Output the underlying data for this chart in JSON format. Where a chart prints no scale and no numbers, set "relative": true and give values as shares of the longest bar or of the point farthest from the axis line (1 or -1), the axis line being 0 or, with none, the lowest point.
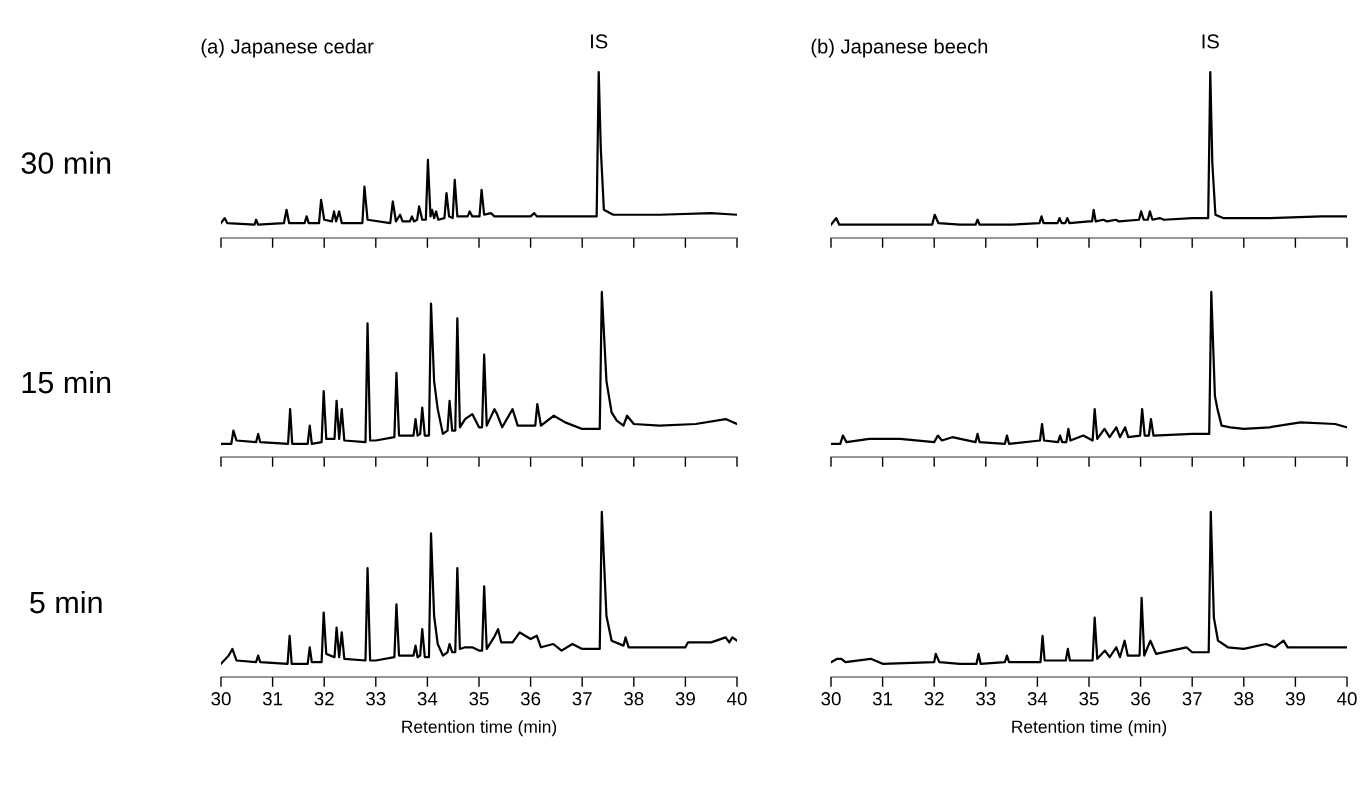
{
  "chart_data": [
    {
      "type": "line",
      "title": "(a) Japanese cedar",
      "relative": true,
      "xlim": [
        30,
        40
      ],
      "xticks": [
        30,
        31,
        32,
        33,
        34,
        35,
        36,
        37,
        38,
        39,
        40
      ],
      "tick_labels": false,
      "annotations": [
        "30 min",
        {
          "text": "IS",
          "x": 37.32,
          "y": 1.0
        }
      ],
      "series": [
        {
          "color": "#000000",
          "x": [
            30.0,
            30.07,
            30.12,
            30.65,
            30.68,
            30.72,
            31.22,
            31.27,
            31.32,
            31.62,
            31.66,
            31.7,
            31.9,
            31.94,
            32.0,
            32.15,
            32.19,
            32.23,
            32.29,
            32.34,
            32.74,
            32.78,
            32.84,
            33.28,
            33.33,
            33.39,
            33.47,
            33.52,
            33.66,
            33.7,
            33.74,
            33.8,
            33.84,
            33.9,
            33.97,
            34.01,
            34.06,
            34.09,
            34.13,
            34.17,
            34.21,
            34.33,
            34.37,
            34.42,
            34.49,
            34.53,
            34.58,
            34.78,
            34.82,
            34.87,
            35.01,
            35.05,
            35.1,
            35.23,
            35.3,
            36.0,
            36.07,
            36.12,
            37.28,
            37.32,
            37.36,
            37.42,
            37.6,
            38.5,
            39.5,
            40.0
          ],
          "values": [
            0.09,
            0.12,
            0.09,
            0.08,
            0.11,
            0.08,
            0.09,
            0.17,
            0.09,
            0.09,
            0.13,
            0.09,
            0.09,
            0.23,
            0.11,
            0.1,
            0.16,
            0.1,
            0.16,
            0.09,
            0.09,
            0.31,
            0.11,
            0.09,
            0.22,
            0.1,
            0.14,
            0.1,
            0.1,
            0.13,
            0.1,
            0.11,
            0.19,
            0.11,
            0.11,
            0.47,
            0.13,
            0.17,
            0.12,
            0.16,
            0.11,
            0.12,
            0.27,
            0.13,
            0.12,
            0.35,
            0.13,
            0.13,
            0.16,
            0.13,
            0.13,
            0.29,
            0.14,
            0.15,
            0.13,
            0.13,
            0.15,
            0.13,
            0.13,
            1.0,
            0.54,
            0.17,
            0.14,
            0.14,
            0.15,
            0.14
          ]
        }
      ]
    },
    {
      "type": "line",
      "title": "(b) Japanese beech",
      "relative": true,
      "xlim": [
        30,
        40
      ],
      "xticks": [
        30,
        31,
        32,
        33,
        34,
        35,
        36,
        37,
        38,
        39,
        40
      ],
      "tick_labels": false,
      "annotations": [
        {
          "text": "IS",
          "x": 37.35,
          "y": 1.0
        }
      ],
      "series": [
        {
          "color": "#000000",
          "x": [
            30.0,
            30.1,
            30.16,
            30.8,
            31.5,
            31.96,
            32.01,
            32.08,
            32.5,
            32.8,
            32.84,
            32.88,
            33.5,
            34.04,
            34.08,
            34.12,
            34.39,
            34.43,
            34.47,
            34.54,
            34.58,
            34.62,
            35.0,
            35.06,
            35.09,
            35.13,
            35.28,
            35.35,
            35.52,
            35.58,
            35.97,
            36.01,
            36.06,
            36.14,
            36.18,
            36.23,
            36.37,
            36.45,
            37.0,
            37.31,
            37.35,
            37.39,
            37.45,
            37.6,
            38.5,
            39.5,
            40.0
          ],
          "values": [
            0.08,
            0.12,
            0.08,
            0.08,
            0.08,
            0.08,
            0.14,
            0.09,
            0.08,
            0.08,
            0.11,
            0.08,
            0.08,
            0.09,
            0.13,
            0.09,
            0.09,
            0.12,
            0.09,
            0.09,
            0.12,
            0.09,
            0.1,
            0.1,
            0.17,
            0.1,
            0.11,
            0.1,
            0.11,
            0.1,
            0.11,
            0.16,
            0.11,
            0.11,
            0.16,
            0.11,
            0.12,
            0.11,
            0.12,
            0.12,
            1.0,
            0.45,
            0.14,
            0.12,
            0.12,
            0.13,
            0.13
          ]
        }
      ]
    },
    {
      "type": "line",
      "relative": true,
      "xlim": [
        30,
        40
      ],
      "xticks": [
        30,
        31,
        32,
        33,
        34,
        35,
        36,
        37,
        38,
        39,
        40
      ],
      "tick_labels": false,
      "annotations": [
        "15 min"
      ],
      "series": [
        {
          "color": "#000000",
          "x": [
            30.0,
            30.2,
            30.24,
            30.3,
            30.68,
            30.72,
            30.76,
            31.3,
            31.34,
            31.38,
            31.68,
            31.72,
            31.76,
            31.95,
            31.99,
            32.04,
            32.2,
            32.24,
            32.29,
            32.34,
            32.39,
            32.8,
            32.84,
            32.89,
            33.0,
            33.36,
            33.4,
            33.45,
            33.5,
            33.73,
            33.77,
            33.81,
            33.86,
            33.9,
            33.95,
            34.03,
            34.07,
            34.13,
            34.2,
            34.3,
            34.39,
            34.43,
            34.48,
            34.54,
            34.58,
            34.63,
            34.73,
            34.87,
            35.0,
            35.06,
            35.1,
            35.15,
            35.3,
            35.35,
            35.45,
            35.65,
            35.75,
            36.09,
            36.13,
            36.2,
            36.45,
            36.67,
            37.0,
            37.34,
            37.38,
            37.47,
            37.57,
            37.67,
            37.8,
            37.87,
            38.0,
            38.5,
            39.2,
            39.78,
            40.0
          ],
          "values": [
            0.08,
            0.08,
            0.16,
            0.1,
            0.09,
            0.14,
            0.09,
            0.08,
            0.29,
            0.08,
            0.08,
            0.19,
            0.08,
            0.09,
            0.4,
            0.11,
            0.11,
            0.34,
            0.11,
            0.29,
            0.1,
            0.09,
            0.81,
            0.1,
            0.1,
            0.12,
            0.51,
            0.13,
            0.13,
            0.13,
            0.23,
            0.13,
            0.14,
            0.3,
            0.13,
            0.13,
            0.93,
            0.46,
            0.29,
            0.14,
            0.16,
            0.34,
            0.16,
            0.16,
            0.84,
            0.18,
            0.23,
            0.26,
            0.18,
            0.18,
            0.62,
            0.19,
            0.29,
            0.26,
            0.18,
            0.29,
            0.19,
            0.19,
            0.32,
            0.19,
            0.25,
            0.21,
            0.17,
            0.17,
            1.0,
            0.46,
            0.27,
            0.22,
            0.19,
            0.25,
            0.2,
            0.19,
            0.2,
            0.23,
            0.2
          ]
        }
      ]
    },
    {
      "type": "line",
      "relative": true,
      "xlim": [
        30,
        40
      ],
      "xticks": [
        30,
        31,
        32,
        33,
        34,
        35,
        36,
        37,
        38,
        39,
        40
      ],
      "tick_labels": false,
      "series": [
        {
          "color": "#000000",
          "x": [
            30.0,
            30.18,
            30.23,
            30.3,
            30.74,
            31.34,
            32.0,
            32.07,
            32.15,
            32.35,
            32.8,
            32.84,
            32.88,
            33.37,
            33.41,
            33.45,
            34.05,
            34.09,
            34.13,
            34.4,
            34.44,
            34.48,
            34.56,
            34.6,
            34.64,
            34.89,
            35.07,
            35.11,
            35.16,
            35.3,
            35.4,
            35.53,
            35.6,
            35.7,
            35.76,
            35.99,
            36.03,
            36.08,
            36.16,
            36.2,
            36.25,
            37.0,
            37.33,
            37.37,
            37.44,
            37.49,
            37.57,
            37.74,
            38.0,
            38.5,
            39.1,
            39.77,
            40.0
          ],
          "values": [
            0.08,
            0.08,
            0.13,
            0.09,
            0.11,
            0.11,
            0.09,
            0.13,
            0.1,
            0.12,
            0.09,
            0.14,
            0.09,
            0.08,
            0.13,
            0.08,
            0.1,
            0.2,
            0.1,
            0.09,
            0.13,
            0.09,
            0.09,
            0.17,
            0.1,
            0.13,
            0.1,
            0.29,
            0.11,
            0.17,
            0.12,
            0.18,
            0.12,
            0.18,
            0.12,
            0.13,
            0.29,
            0.13,
            0.13,
            0.23,
            0.13,
            0.14,
            0.14,
            1.0,
            0.37,
            0.29,
            0.19,
            0.18,
            0.17,
            0.18,
            0.21,
            0.2,
            0.18
          ]
        }
      ]
    },
    {
      "type": "line",
      "relative": true,
      "xlim": [
        30,
        40
      ],
      "xticks": [
        30,
        31,
        32,
        33,
        34,
        35,
        36,
        37,
        38,
        39,
        40
      ],
      "tick_labels": "x",
      "xlabel": "Retention time (min)",
      "annotations": [
        "5 min"
      ],
      "series": [
        {
          "color": "#000000",
          "x": [
            30.0,
            30.15,
            30.22,
            30.3,
            30.68,
            30.72,
            30.76,
            31.29,
            31.33,
            31.37,
            31.68,
            31.72,
            31.76,
            31.95,
            31.99,
            32.04,
            32.2,
            32.24,
            32.29,
            32.34,
            32.39,
            32.8,
            32.84,
            32.89,
            33.0,
            33.36,
            33.4,
            33.45,
            33.5,
            33.73,
            33.77,
            33.81,
            33.86,
            33.9,
            33.95,
            34.03,
            34.07,
            34.13,
            34.2,
            34.3,
            34.39,
            34.43,
            34.48,
            34.54,
            34.58,
            34.63,
            34.73,
            34.87,
            35.0,
            35.06,
            35.1,
            35.15,
            35.29,
            35.37,
            35.43,
            35.65,
            35.79,
            36.0,
            36.12,
            36.2,
            36.44,
            36.6,
            36.81,
            37.0,
            37.34,
            37.38,
            37.47,
            37.57,
            37.8,
            37.84,
            37.9,
            38.2,
            39.0,
            39.05,
            39.5,
            39.78,
            39.85,
            39.91,
            40.0
          ],
          "values": [
            0.08,
            0.13,
            0.17,
            0.1,
            0.09,
            0.13,
            0.09,
            0.08,
            0.25,
            0.08,
            0.08,
            0.18,
            0.09,
            0.09,
            0.39,
            0.14,
            0.12,
            0.3,
            0.12,
            0.27,
            0.11,
            0.1,
            0.66,
            0.1,
            0.1,
            0.12,
            0.44,
            0.13,
            0.13,
            0.13,
            0.19,
            0.12,
            0.13,
            0.29,
            0.12,
            0.12,
            0.87,
            0.37,
            0.2,
            0.13,
            0.15,
            0.2,
            0.15,
            0.15,
            0.66,
            0.17,
            0.18,
            0.18,
            0.16,
            0.16,
            0.55,
            0.17,
            0.24,
            0.29,
            0.21,
            0.21,
            0.27,
            0.23,
            0.25,
            0.18,
            0.2,
            0.16,
            0.2,
            0.17,
            0.17,
            1.0,
            0.37,
            0.22,
            0.19,
            0.24,
            0.18,
            0.18,
            0.18,
            0.21,
            0.21,
            0.24,
            0.21,
            0.24,
            0.22
          ]
        }
      ]
    },
    {
      "type": "line",
      "relative": true,
      "xlim": [
        30,
        40
      ],
      "xticks": [
        30,
        31,
        32,
        33,
        34,
        35,
        36,
        37,
        38,
        39,
        40
      ],
      "tick_labels": "x",
      "xlabel": "Retention time (min)",
      "series": [
        {
          "color": "#000000",
          "x": [
            30.0,
            30.12,
            30.2,
            30.28,
            30.77,
            31.0,
            32.0,
            32.03,
            32.1,
            32.5,
            32.82,
            32.86,
            32.9,
            33.37,
            33.41,
            33.45,
            33.8,
            34.06,
            34.1,
            34.14,
            34.55,
            34.59,
            34.63,
            35.0,
            35.07,
            35.11,
            35.16,
            35.31,
            35.4,
            35.53,
            35.6,
            35.69,
            35.75,
            35.98,
            36.02,
            36.07,
            36.19,
            36.3,
            36.89,
            37.0,
            37.32,
            37.36,
            37.42,
            37.5,
            37.69,
            38.0,
            38.43,
            38.6,
            38.77,
            38.85,
            39.5,
            40.0
          ],
          "values": [
            0.09,
            0.11,
            0.11,
            0.09,
            0.11,
            0.08,
            0.09,
            0.14,
            0.09,
            0.08,
            0.08,
            0.14,
            0.08,
            0.09,
            0.13,
            0.09,
            0.09,
            0.09,
            0.25,
            0.1,
            0.1,
            0.17,
            0.1,
            0.1,
            0.1,
            0.36,
            0.11,
            0.16,
            0.12,
            0.18,
            0.12,
            0.22,
            0.13,
            0.13,
            0.48,
            0.13,
            0.22,
            0.14,
            0.18,
            0.15,
            0.15,
            1.0,
            0.36,
            0.22,
            0.18,
            0.17,
            0.2,
            0.18,
            0.22,
            0.18,
            0.18,
            0.18
          ]
        }
      ]
    }
  ]
}
